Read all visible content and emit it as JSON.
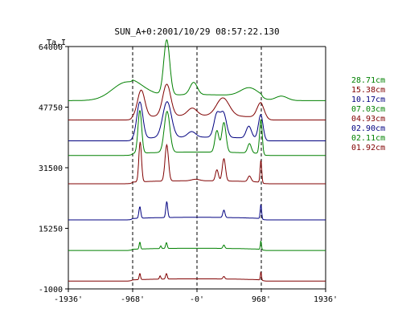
{
  "chart_data": {
    "type": "line",
    "title": "SUN_A+0:2001/10/29 08:57:22.130",
    "ylabel": "Ta,I",
    "xlabel": "",
    "xlim": [
      -1936,
      1936
    ],
    "ylim": [
      -1000,
      64000
    ],
    "x_ticks": [
      {
        "value": -1936,
        "label": "-1936'"
      },
      {
        "value": -968,
        "label": "-968'"
      },
      {
        "value": 0,
        "label": "-0'"
      },
      {
        "value": 968,
        "label": "968'"
      },
      {
        "value": 1936,
        "label": "1936'"
      }
    ],
    "y_ticks": [
      {
        "value": 64000,
        "label": "64000"
      },
      {
        "value": 47750,
        "label": "47750"
      },
      {
        "value": 31500,
        "label": "31500"
      },
      {
        "value": 15250,
        "label": "15250"
      },
      {
        "value": -1000,
        "label": "-1000"
      }
    ],
    "vertical_guides": [
      -968,
      0,
      968
    ],
    "series": [
      {
        "name": "28.71cm",
        "color": "#008000",
        "baseline": 49500,
        "limb_step": 1600,
        "peaks": [
          [
            -1050,
            5000,
            220
          ],
          [
            -455,
            14700,
            45
          ],
          [
            -50,
            3300,
            55
          ],
          [
            790,
            2300,
            130
          ],
          [
            1270,
            1200,
            90
          ]
        ]
      },
      {
        "name": "15.38cm",
        "color": "#800000",
        "baseline": 44300,
        "limb_step": 1200,
        "peaks": [
          [
            -840,
            7200,
            55
          ],
          [
            -455,
            8500,
            60
          ],
          [
            -70,
            2000,
            70
          ],
          [
            390,
            4800,
            95
          ],
          [
            960,
            4000,
            55
          ]
        ]
      },
      {
        "name": "10.17cm",
        "color": "#000080",
        "baseline": 38700,
        "limb_step": 1000,
        "peaks": [
          [
            -860,
            9800,
            45
          ],
          [
            -450,
            9600,
            65
          ],
          [
            -80,
            1500,
            60
          ],
          [
            300,
            6200,
            45
          ],
          [
            400,
            6300,
            45
          ],
          [
            780,
            3200,
            40
          ],
          [
            960,
            6500,
            35
          ]
        ]
      },
      {
        "name": "07.03cm",
        "color": "#008000",
        "baseline": 34800,
        "limb_step": 900,
        "peaks": [
          [
            -860,
            11500,
            28
          ],
          [
            -450,
            11000,
            42
          ],
          [
            300,
            5800,
            30
          ],
          [
            405,
            8000,
            32
          ],
          [
            790,
            2500,
            28
          ],
          [
            962,
            9000,
            20
          ]
        ]
      },
      {
        "name": "04.93cm",
        "color": "#800000",
        "baseline": 27200,
        "limb_step": 800,
        "peaks": [
          [
            -855,
            10700,
            20
          ],
          [
            -455,
            9700,
            26
          ],
          [
            -20,
            400,
            60
          ],
          [
            300,
            3000,
            22
          ],
          [
            405,
            6000,
            24
          ],
          [
            790,
            1500,
            24
          ],
          [
            962,
            5900,
            12
          ]
        ]
      },
      {
        "name": "02.90cm",
        "color": "#000080",
        "baseline": 17500,
        "limb_step": 700,
        "peaks": [
          [
            -860,
            3100,
            14
          ],
          [
            -455,
            4300,
            14
          ],
          [
            405,
            2000,
            16
          ],
          [
            962,
            3800,
            10
          ]
        ]
      },
      {
        "name": "02.11cm",
        "color": "#008000",
        "baseline": 9300,
        "limb_step": 600,
        "peaks": [
          [
            -860,
            1900,
            10
          ],
          [
            -460,
            1600,
            12
          ],
          [
            -545,
            700,
            10
          ],
          [
            405,
            900,
            14
          ],
          [
            962,
            2300,
            8
          ]
        ]
      },
      {
        "name": "01.92cm",
        "color": "#800000",
        "baseline": 1100,
        "limb_step": 600,
        "peaks": [
          [
            -860,
            1700,
            10
          ],
          [
            -460,
            1500,
            12
          ],
          [
            -555,
            900,
            10
          ],
          [
            405,
            700,
            14
          ],
          [
            962,
            2200,
            8
          ]
        ]
      }
    ]
  }
}
